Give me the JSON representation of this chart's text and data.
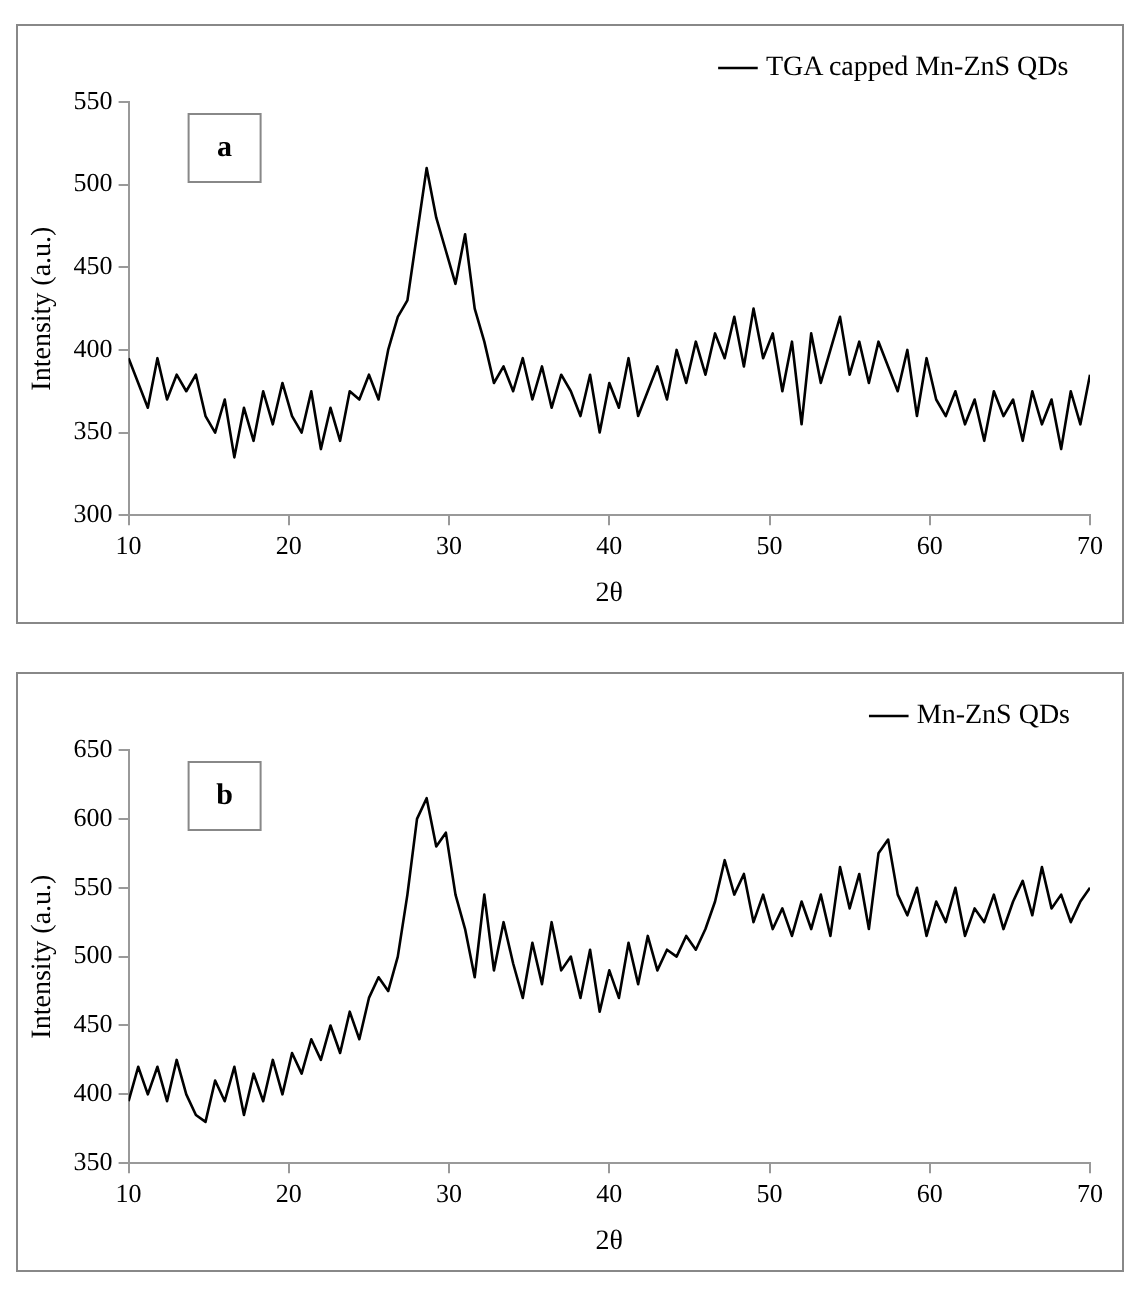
{
  "chart_data": [
    {
      "type": "line",
      "xlabel": "2θ",
      "ylabel": "Intensity (a.u.)",
      "annotations": [
        "a"
      ],
      "legend": "top right",
      "marker": "none",
      "xlim": [
        10,
        70
      ],
      "xticks": [
        10,
        20,
        30,
        40,
        50,
        60,
        70
      ],
      "ylim": [
        300,
        550
      ],
      "yticks": [
        300,
        350,
        400,
        450,
        500,
        550
      ],
      "x": [
        10.0,
        10.6,
        11.2,
        11.8,
        12.4,
        13.0,
        13.6,
        14.2,
        14.8,
        15.4,
        16.0,
        16.6,
        17.2,
        17.8,
        18.4,
        19.0,
        19.6,
        20.2,
        20.8,
        21.4,
        22.0,
        22.6,
        23.2,
        23.8,
        24.4,
        25.0,
        25.6,
        26.2,
        26.8,
        27.4,
        28.0,
        28.6,
        29.2,
        29.8,
        30.4,
        31.0,
        31.6,
        32.2,
        32.8,
        33.4,
        34.0,
        34.6,
        35.2,
        35.8,
        36.4,
        37.0,
        37.6,
        38.2,
        38.8,
        39.4,
        40.0,
        40.6,
        41.2,
        41.8,
        42.4,
        43.0,
        43.6,
        44.2,
        44.8,
        45.4,
        46.0,
        46.6,
        47.2,
        47.8,
        48.4,
        49.0,
        49.6,
        50.2,
        50.8,
        51.4,
        52.0,
        52.6,
        53.2,
        53.8,
        54.4,
        55.0,
        55.6,
        56.2,
        56.8,
        57.4,
        58.0,
        58.6,
        59.2,
        59.8,
        60.4,
        61.0,
        61.6,
        62.2,
        62.8,
        63.4,
        64.0,
        64.6,
        65.2,
        65.8,
        66.4,
        67.0,
        67.6,
        68.2,
        68.8,
        69.4,
        70.0
      ],
      "series": [
        {
          "name": "TGA capped Mn-ZnS QDs",
          "color": "#000000",
          "values": [
            395,
            380,
            365,
            395,
            370,
            385,
            375,
            385,
            360,
            350,
            370,
            335,
            365,
            345,
            375,
            355,
            380,
            360,
            350,
            375,
            340,
            365,
            345,
            375,
            370,
            385,
            370,
            400,
            420,
            430,
            470,
            510,
            480,
            460,
            440,
            470,
            425,
            405,
            380,
            390,
            375,
            395,
            370,
            390,
            365,
            385,
            375,
            360,
            385,
            350,
            380,
            365,
            395,
            360,
            375,
            390,
            370,
            400,
            380,
            405,
            385,
            410,
            395,
            420,
            390,
            425,
            395,
            410,
            375,
            405,
            355,
            410,
            380,
            400,
            420,
            385,
            405,
            380,
            405,
            390,
            375,
            400,
            360,
            395,
            370,
            360,
            375,
            355,
            370,
            345,
            375,
            360,
            370,
            345,
            375,
            355,
            370,
            340,
            375,
            355,
            385
          ]
        }
      ]
    },
    {
      "type": "line",
      "xlabel": "2θ",
      "ylabel": "Intensity (a.u.)",
      "annotations": [
        "b"
      ],
      "legend": "top right",
      "marker": "none",
      "xlim": [
        10,
        70
      ],
      "xticks": [
        10,
        20,
        30,
        40,
        50,
        60,
        70
      ],
      "ylim": [
        350,
        650
      ],
      "yticks": [
        350,
        400,
        450,
        500,
        550,
        600,
        650
      ],
      "x": [
        10.0,
        10.6,
        11.2,
        11.8,
        12.4,
        13.0,
        13.6,
        14.2,
        14.8,
        15.4,
        16.0,
        16.6,
        17.2,
        17.8,
        18.4,
        19.0,
        19.6,
        20.2,
        20.8,
        21.4,
        22.0,
        22.6,
        23.2,
        23.8,
        24.4,
        25.0,
        25.6,
        26.2,
        26.8,
        27.4,
        28.0,
        28.6,
        29.2,
        29.8,
        30.4,
        31.0,
        31.6,
        32.2,
        32.8,
        33.4,
        34.0,
        34.6,
        35.2,
        35.8,
        36.4,
        37.0,
        37.6,
        38.2,
        38.8,
        39.4,
        40.0,
        40.6,
        41.2,
        41.8,
        42.4,
        43.0,
        43.6,
        44.2,
        44.8,
        45.4,
        46.0,
        46.6,
        47.2,
        47.8,
        48.4,
        49.0,
        49.6,
        50.2,
        50.8,
        51.4,
        52.0,
        52.6,
        53.2,
        53.8,
        54.4,
        55.0,
        55.6,
        56.2,
        56.8,
        57.4,
        58.0,
        58.6,
        59.2,
        59.8,
        60.4,
        61.0,
        61.6,
        62.2,
        62.8,
        63.4,
        64.0,
        64.6,
        65.2,
        65.8,
        66.4,
        67.0,
        67.6,
        68.2,
        68.8,
        69.4,
        70.0
      ],
      "series": [
        {
          "name": "Mn-ZnS QDs",
          "color": "#000000",
          "values": [
            395,
            420,
            400,
            420,
            395,
            425,
            400,
            385,
            380,
            410,
            395,
            420,
            385,
            415,
            395,
            425,
            400,
            430,
            415,
            440,
            425,
            450,
            430,
            460,
            440,
            470,
            485,
            475,
            500,
            545,
            600,
            615,
            580,
            590,
            545,
            520,
            485,
            545,
            490,
            525,
            495,
            470,
            510,
            480,
            525,
            490,
            500,
            470,
            505,
            460,
            490,
            470,
            510,
            480,
            515,
            490,
            505,
            500,
            515,
            505,
            520,
            540,
            570,
            545,
            560,
            525,
            545,
            520,
            535,
            515,
            540,
            520,
            545,
            515,
            565,
            535,
            560,
            520,
            575,
            585,
            545,
            530,
            550,
            515,
            540,
            525,
            550,
            515,
            535,
            525,
            545,
            520,
            540,
            555,
            530,
            565,
            535,
            545,
            525,
            540,
            550
          ]
        }
      ]
    }
  ]
}
